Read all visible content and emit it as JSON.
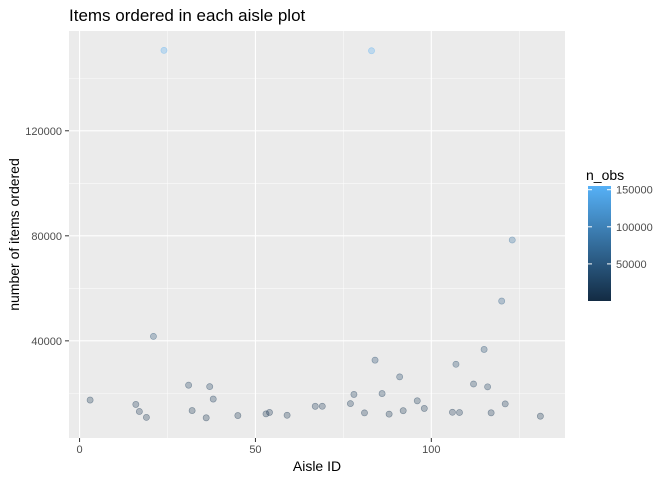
{
  "chart_data": {
    "type": "scatter",
    "title": "Items ordered in each aisle plot",
    "xlabel": "Aisle ID",
    "ylabel": "number of items ordered",
    "xlim": [
      -3,
      138
    ],
    "ylim": [
      3000,
      158000
    ],
    "x_ticks": [
      0,
      50,
      100
    ],
    "y_ticks": [
      40000,
      80000,
      120000
    ],
    "x_tick_labels": [
      "0",
      "50",
      "100"
    ],
    "y_tick_labels": [
      "40000",
      "80000",
      "120000"
    ],
    "grid": true,
    "legend": {
      "title": "n_obs",
      "placement": "right",
      "type": "colorbar",
      "range": [
        0,
        155000
      ],
      "ticks": [
        50000,
        100000,
        150000
      ],
      "tick_labels": [
        "50000",
        "100000",
        "150000"
      ],
      "low_color": "#132B43",
      "high_color": "#56B1F7"
    },
    "colors": {
      "panel_background": "#EBEBEB",
      "grid_major": "#FFFFFF",
      "point_low": "#132B43",
      "point_high": "#56B1F7"
    },
    "points": [
      {
        "x": 3,
        "y": 17449
      },
      {
        "x": 16,
        "y": 15789
      },
      {
        "x": 17,
        "y": 13086
      },
      {
        "x": 19,
        "y": 10866
      },
      {
        "x": 21,
        "y": 41699
      },
      {
        "x": 24,
        "y": 150609
      },
      {
        "x": 31,
        "y": 23122
      },
      {
        "x": 32,
        "y": 13443
      },
      {
        "x": 36,
        "y": 10685
      },
      {
        "x": 37,
        "y": 22568
      },
      {
        "x": 38,
        "y": 17832
      },
      {
        "x": 45,
        "y": 11549
      },
      {
        "x": 53,
        "y": 12189
      },
      {
        "x": 54,
        "y": 12742
      },
      {
        "x": 59,
        "y": 11664
      },
      {
        "x": 67,
        "y": 15072
      },
      {
        "x": 69,
        "y": 15079
      },
      {
        "x": 77,
        "y": 16083
      },
      {
        "x": 78,
        "y": 19592
      },
      {
        "x": 81,
        "y": 12562
      },
      {
        "x": 83,
        "y": 150473
      },
      {
        "x": 84,
        "y": 32644
      },
      {
        "x": 86,
        "y": 19919
      },
      {
        "x": 88,
        "y": 12082
      },
      {
        "x": 91,
        "y": 26277
      },
      {
        "x": 92,
        "y": 13406
      },
      {
        "x": 96,
        "y": 17155
      },
      {
        "x": 98,
        "y": 14265
      },
      {
        "x": 106,
        "y": 12811
      },
      {
        "x": 107,
        "y": 31081
      },
      {
        "x": 108,
        "y": 12721
      },
      {
        "x": 112,
        "y": 23566
      },
      {
        "x": 115,
        "y": 36724
      },
      {
        "x": 116,
        "y": 22475
      },
      {
        "x": 117,
        "y": 12591
      },
      {
        "x": 120,
        "y": 55158
      },
      {
        "x": 121,
        "y": 15988
      },
      {
        "x": 123,
        "y": 78413
      },
      {
        "x": 131,
        "y": 11304
      }
    ]
  }
}
